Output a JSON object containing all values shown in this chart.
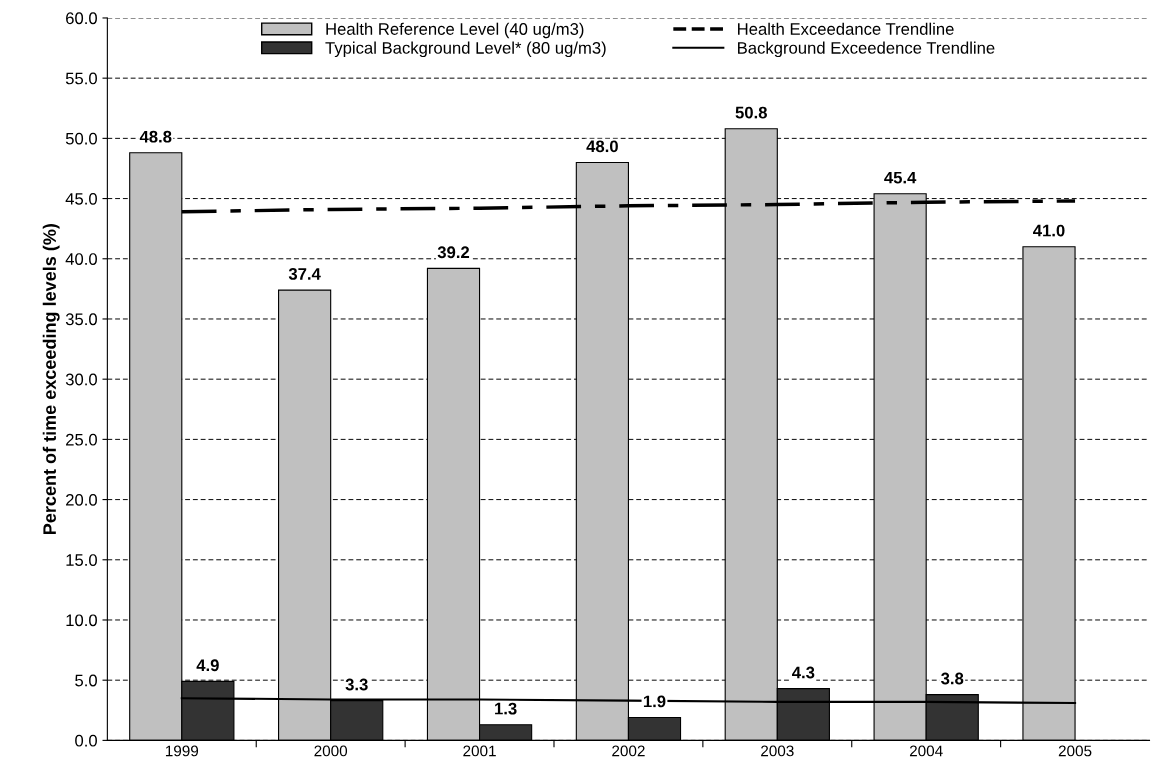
{
  "chart_data": {
    "type": "bar",
    "ylabel": "Percent of time exceeding levels (%)",
    "categories": [
      "1999",
      "2000",
      "2001",
      "2002",
      "2003",
      "2004",
      "2005"
    ],
    "series": [
      {
        "name": "Health Reference Level (40 ug/m3)",
        "color": "#c0c0c0",
        "values": [
          48.8,
          37.4,
          39.2,
          48.0,
          50.8,
          45.4,
          41.0
        ],
        "value_labels": [
          "48.8",
          "37.4",
          "39.2",
          "48.0",
          "50.8",
          "45.4",
          "41.0"
        ]
      },
      {
        "name": "Typical Background Level* (80 ug/m3)",
        "color": "#333333",
        "values": [
          4.9,
          3.3,
          1.3,
          1.9,
          4.3,
          3.8,
          null
        ],
        "value_labels": [
          "4.9",
          "3.3",
          "1.3",
          "1.9",
          "4.3",
          "3.8",
          null
        ]
      },
      {
        "name": "Health Exceedance Trendline",
        "type": "line",
        "line_style": "dashdot",
        "color": "#000000",
        "values": [
          43.9,
          44.1,
          44.2,
          44.4,
          44.5,
          44.7,
          44.8
        ]
      },
      {
        "name": "Background Exceedence Trendline",
        "type": "line",
        "line_style": "solid",
        "color": "#000000",
        "values": [
          3.5,
          3.4,
          3.4,
          3.3,
          3.2,
          3.2,
          3.1
        ]
      }
    ],
    "ylim": [
      0,
      60
    ],
    "yticks": [
      {
        "value": 0,
        "label": "0.0"
      },
      {
        "value": 5,
        "label": "5.0"
      },
      {
        "value": 10,
        "label": "10.0"
      },
      {
        "value": 15,
        "label": "15.0"
      },
      {
        "value": 20,
        "label": "20.0"
      },
      {
        "value": 25,
        "label": "25.0"
      },
      {
        "value": 30,
        "label": "30.0"
      },
      {
        "value": 35,
        "label": "35.0"
      },
      {
        "value": 40,
        "label": "40.0"
      },
      {
        "value": 45,
        "label": "45.0"
      },
      {
        "value": 50,
        "label": "50.0"
      },
      {
        "value": 55,
        "label": "55.0"
      },
      {
        "value": 60,
        "label": "60.0"
      }
    ],
    "grid": "y",
    "legend": "top"
  }
}
